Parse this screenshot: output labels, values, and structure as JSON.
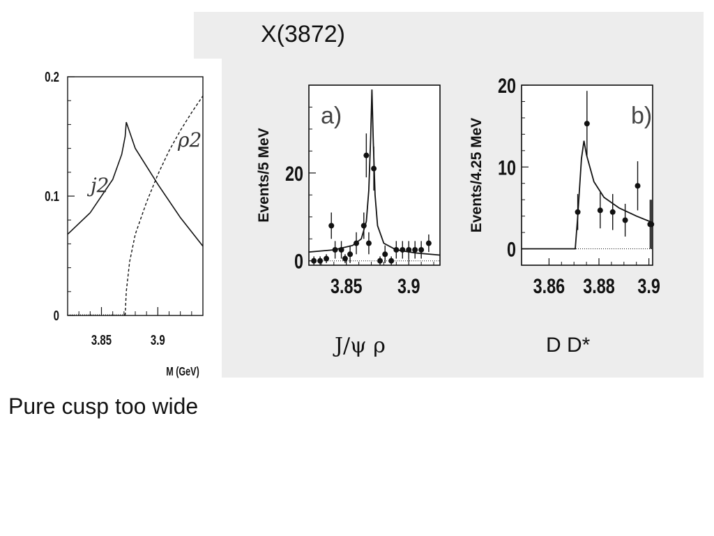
{
  "slide": {
    "title": "X(3872)",
    "label_left": "J/ψ ρ",
    "label_right": "D D*",
    "caption": "Pure  cusp too wide"
  },
  "chart_data": [
    {
      "type": "line",
      "xlabel": "M (GeV)",
      "ylabel": "",
      "xlim": [
        3.82,
        3.94
      ],
      "ylim": [
        0,
        0.2
      ],
      "xticks": [
        "3.85",
        "3.9"
      ],
      "yticks": [
        "0",
        "0.1",
        "0.2"
      ],
      "series": [
        {
          "name": "j2",
          "style": "solid",
          "x": [
            3.82,
            3.84,
            3.86,
            3.868,
            3.871,
            3.872,
            3.88,
            3.9,
            3.92,
            3.94
          ],
          "y": [
            0.068,
            0.086,
            0.114,
            0.135,
            0.15,
            0.162,
            0.14,
            0.11,
            0.082,
            0.058
          ]
        },
        {
          "name": "ρ2",
          "style": "dashed",
          "x": [
            3.871,
            3.872,
            3.875,
            3.88,
            3.89,
            3.9,
            3.91,
            3.92,
            3.93,
            3.94
          ],
          "y": [
            0.0,
            0.02,
            0.045,
            0.068,
            0.095,
            0.118,
            0.138,
            0.155,
            0.17,
            0.184
          ]
        }
      ]
    },
    {
      "type": "scatter",
      "panel_label": "a)",
      "ylabel": "Events/5 MeV",
      "xlim": [
        3.82,
        3.925
      ],
      "ylim": [
        -1,
        40
      ],
      "xticks": [
        "3.85",
        "3.9"
      ],
      "yticks": [
        "0",
        "20"
      ],
      "points": {
        "x": [
          3.824,
          3.829,
          3.834,
          3.838,
          3.841,
          3.846,
          3.849,
          3.853,
          3.858,
          3.864,
          3.866,
          3.868,
          3.872,
          3.877,
          3.881,
          3.886,
          3.89,
          3.895,
          3.9,
          3.905,
          3.91,
          3.916
        ],
        "y": [
          0,
          0,
          0.5,
          8,
          2.5,
          2.5,
          0.5,
          1.5,
          4,
          8,
          24,
          4,
          21,
          0,
          1.5,
          0,
          2.5,
          2.5,
          2.5,
          2.5,
          2.5,
          4
        ],
        "err": [
          1,
          1,
          1,
          3,
          2,
          2,
          1,
          2,
          2.5,
          3,
          5,
          2.5,
          5,
          1,
          2,
          1,
          2,
          2,
          2,
          2,
          2,
          2
        ]
      },
      "fit": {
        "x": [
          3.82,
          3.84,
          3.855,
          3.862,
          3.866,
          3.868,
          3.8695,
          3.8705,
          3.8715,
          3.873,
          3.875,
          3.88,
          3.89,
          3.905,
          3.925
        ],
        "y": [
          2,
          2.5,
          3.5,
          5,
          9,
          16,
          28,
          39,
          28,
          15,
          8,
          4,
          2.5,
          1.8,
          1.3
        ]
      },
      "baseline": 0
    },
    {
      "type": "scatter",
      "panel_label": "b)",
      "ylabel": "Events/4.25 MeV",
      "xlim": [
        3.849,
        3.9015
      ],
      "ylim": [
        -2,
        20
      ],
      "xticks": [
        "3.86",
        "3.88",
        "3.9"
      ],
      "yticks": [
        "0",
        "10",
        "20"
      ],
      "points": {
        "x": [
          3.8715,
          3.8752,
          3.8805,
          3.8855,
          3.8905,
          3.8955,
          3.9005,
          3.901
        ],
        "y": [
          4.5,
          15.3,
          4.7,
          4.5,
          3.5,
          7.7,
          3,
          3
        ],
        "err": [
          2.2,
          4,
          2.2,
          2.2,
          2,
          3,
          3,
          3
        ]
      },
      "fit": {
        "x": [
          3.849,
          3.8705,
          3.8715,
          3.873,
          3.874,
          3.875,
          3.878,
          3.882,
          3.888,
          3.895,
          3.9015
        ],
        "y": [
          0,
          0,
          4,
          11,
          13.2,
          11.5,
          8.2,
          6.3,
          5.0,
          4.0,
          3.2
        ]
      },
      "baseline": 0
    }
  ]
}
